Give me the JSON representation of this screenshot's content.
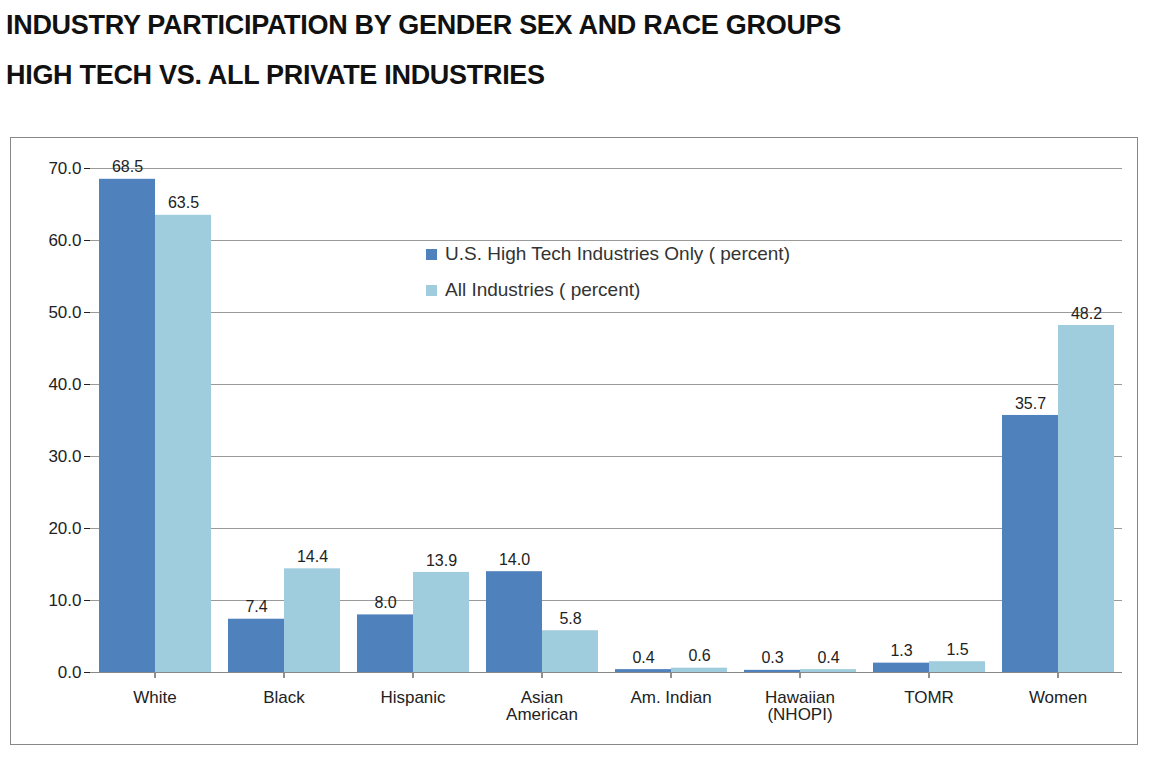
{
  "chart_data": {
    "type": "bar",
    "title": "INDUSTRY PARTICIPATION BY GENDER SEX AND RACE GROUPS",
    "subtitle": "HIGH TECH VS. ALL PRIVATE INDUSTRIES",
    "categories": [
      "White",
      "Black",
      "Hispanic",
      "Asian American",
      "Am. Indian",
      "Hawaiian (NHOPI)",
      "TOMR",
      "Women"
    ],
    "series": [
      {
        "name": "U.S. High Tech Industries Only ( percent)",
        "color": "#4f81bd",
        "values": [
          68.5,
          7.4,
          8.0,
          14.0,
          0.4,
          0.3,
          1.3,
          35.7
        ],
        "value_labels": [
          "68.5",
          "7.4",
          "8.0",
          "14.0",
          "0.4",
          "0.3",
          "1.3",
          "35.7"
        ]
      },
      {
        "name": "All Industries ( percent)",
        "color": "#a0cddd",
        "values": [
          63.5,
          14.4,
          13.9,
          5.8,
          0.6,
          0.4,
          1.5,
          48.2
        ],
        "value_labels": [
          "63.5",
          "14.4",
          "13.9",
          "5.8",
          "0.6",
          "0.4",
          "1.5",
          "48.2"
        ]
      }
    ],
    "ylim": [
      0,
      70
    ],
    "yticks": [
      {
        "value": 0,
        "label": "0.0"
      },
      {
        "value": 10,
        "label": "10.0"
      },
      {
        "value": 20,
        "label": "20.0"
      },
      {
        "value": 30,
        "label": "30.0"
      },
      {
        "value": 40,
        "label": "40.0"
      },
      {
        "value": 50,
        "label": "50.0"
      },
      {
        "value": 60,
        "label": "60.0"
      },
      {
        "value": 70,
        "label": "70.0"
      }
    ],
    "grid": true,
    "legend": "top",
    "data_labels": true
  }
}
